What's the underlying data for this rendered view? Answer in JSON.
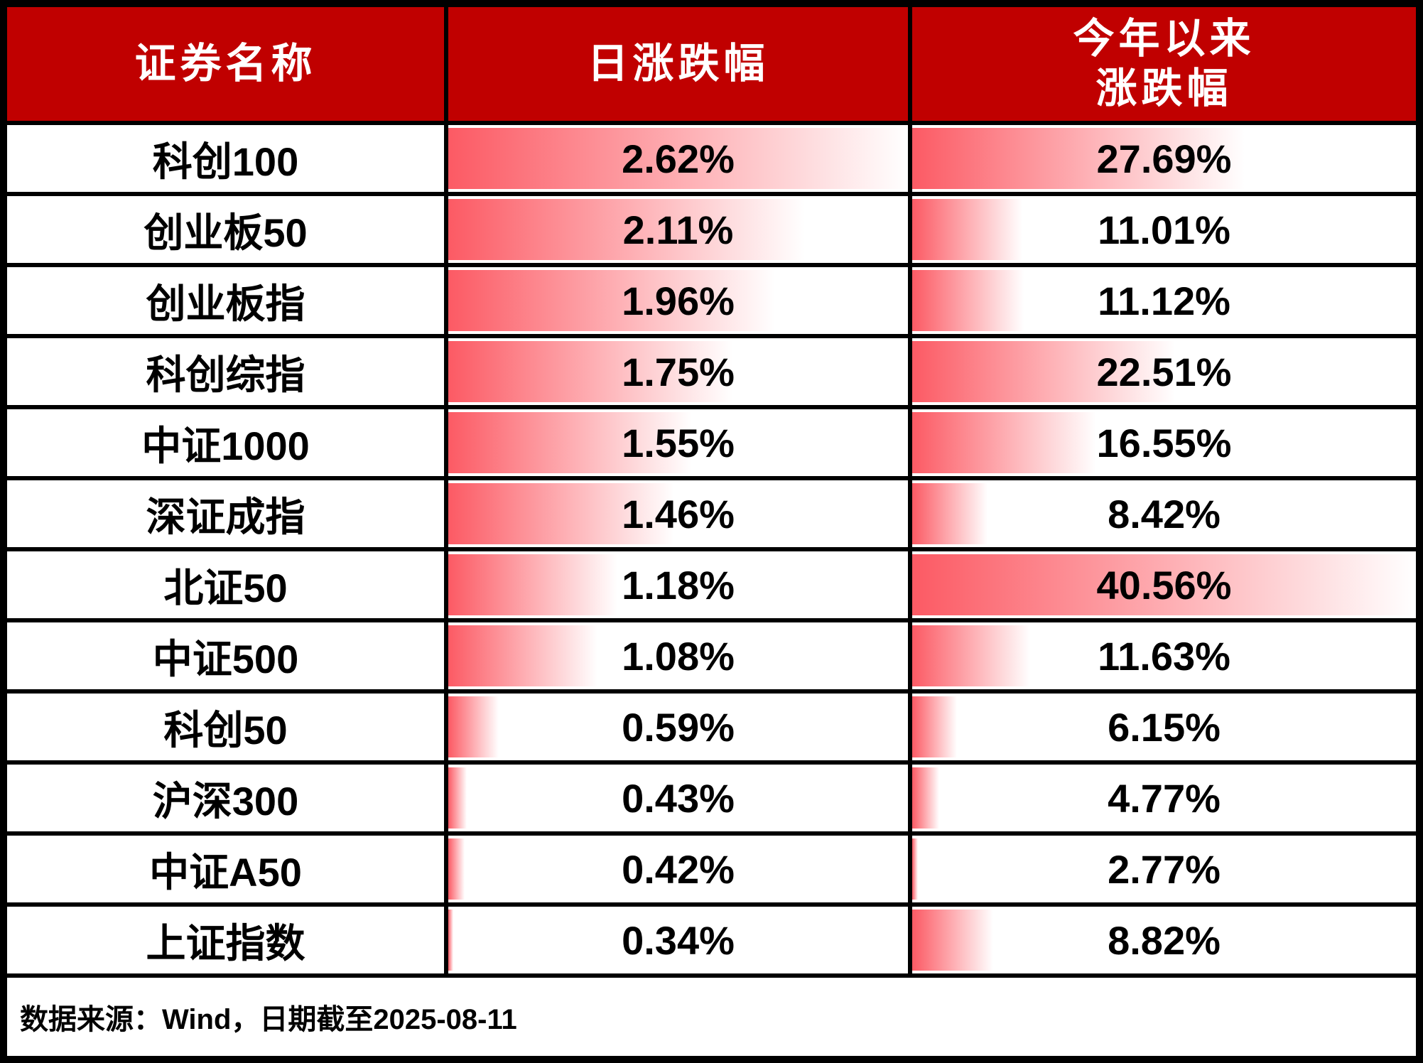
{
  "header": {
    "security_name": "证券名称",
    "daily_change": "日涨跌幅",
    "ytd_line1": "今年以来",
    "ytd_line2": "涨跌幅"
  },
  "footer": {
    "source_note": "数据来源：Wind，日期截至2025-08-11"
  },
  "colors": {
    "header_bg": "#c00000",
    "header_text": "#ffffff",
    "bar_gradient_start": "#fc5a64",
    "bar_gradient_end": "#ffffff",
    "border": "#000000",
    "value_text": "#000000"
  },
  "chart_data": {
    "type": "table",
    "columns": [
      "证券名称",
      "日涨跌幅",
      "今年以来涨跌幅"
    ],
    "bar_scales": {
      "daily": {
        "min": 0.34,
        "max": 2.62
      },
      "ytd": {
        "min": 2.77,
        "max": 40.56
      }
    },
    "rows": [
      {
        "name": "科创100",
        "daily_label": "2.62%",
        "daily": 2.62,
        "ytd_label": "27.69%",
        "ytd": 27.69
      },
      {
        "name": "创业板50",
        "daily_label": "2.11%",
        "daily": 2.11,
        "ytd_label": "11.01%",
        "ytd": 11.01
      },
      {
        "name": "创业板指",
        "daily_label": "1.96%",
        "daily": 1.96,
        "ytd_label": "11.12%",
        "ytd": 11.12
      },
      {
        "name": "科创综指",
        "daily_label": "1.75%",
        "daily": 1.75,
        "ytd_label": "22.51%",
        "ytd": 22.51
      },
      {
        "name": "中证1000",
        "daily_label": "1.55%",
        "daily": 1.55,
        "ytd_label": "16.55%",
        "ytd": 16.55
      },
      {
        "name": "深证成指",
        "daily_label": "1.46%",
        "daily": 1.46,
        "ytd_label": "8.42%",
        "ytd": 8.42
      },
      {
        "name": "北证50",
        "daily_label": "1.18%",
        "daily": 1.18,
        "ytd_label": "40.56%",
        "ytd": 40.56
      },
      {
        "name": "中证500",
        "daily_label": "1.08%",
        "daily": 1.08,
        "ytd_label": "11.63%",
        "ytd": 11.63
      },
      {
        "name": "科创50",
        "daily_label": "0.59%",
        "daily": 0.59,
        "ytd_label": "6.15%",
        "ytd": 6.15
      },
      {
        "name": "沪深300",
        "daily_label": "0.43%",
        "daily": 0.43,
        "ytd_label": "4.77%",
        "ytd": 4.77
      },
      {
        "name": "中证A50",
        "daily_label": "0.42%",
        "daily": 0.42,
        "ytd_label": "2.77%",
        "ytd": 2.77
      },
      {
        "name": "上证指数",
        "daily_label": "0.34%",
        "daily": 0.34,
        "ytd_label": "8.82%",
        "ytd": 8.82
      }
    ]
  }
}
